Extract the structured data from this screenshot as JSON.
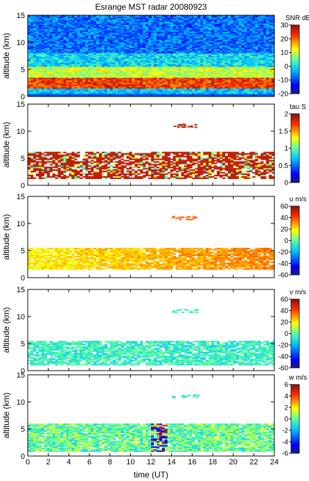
{
  "chart_data": {
    "type": "heatmap",
    "title": "Esrange MST radar 20080923",
    "xlabel": "time (UT)",
    "xlim": [
      0,
      24
    ],
    "xticks": [
      "0",
      "2",
      "4",
      "6",
      "8",
      "10",
      "12",
      "14",
      "16",
      "18",
      "20",
      "22",
      "24"
    ],
    "panels": [
      {
        "ylabel": "altitude (km)",
        "ylim": [
          0,
          15
        ],
        "yticks": [
          "0",
          "5",
          "10",
          "15"
        ],
        "colorbar": {
          "title": "SNR dB",
          "range": [
            -20,
            30
          ],
          "ticks": [
            "-20",
            "-10",
            "0",
            "10",
            "20",
            "30"
          ]
        },
        "kind": "snr",
        "bands": [
          {
            "alt_min": 0.5,
            "alt_max": 1.5,
            "level": 0.35
          },
          {
            "alt_min": 1.5,
            "alt_max": 3.5,
            "level": 0.85
          },
          {
            "alt_min": 3.5,
            "alt_max": 5.5,
            "level": 0.6
          },
          {
            "alt_min": 5.5,
            "alt_max": 8.0,
            "level": 0.38
          },
          {
            "alt_min": 8.0,
            "alt_max": 15.0,
            "level": 0.25
          }
        ]
      },
      {
        "ylabel": "altitude (km)",
        "ylim": [
          0,
          15
        ],
        "yticks": [
          "0",
          "5",
          "10",
          "15"
        ],
        "colorbar": {
          "title": "tau S",
          "range": [
            0,
            2
          ],
          "ticks": [
            "0",
            "0.5",
            "1",
            "1.5",
            "2"
          ]
        },
        "kind": "tau",
        "bands": [
          {
            "alt_min": 1.2,
            "alt_max": 6.2,
            "level": 0.92
          }
        ]
      },
      {
        "ylabel": "altitude (km)",
        "ylim": [
          0,
          15
        ],
        "yticks": [
          "0",
          "5",
          "10",
          "15"
        ],
        "colorbar": {
          "title": "u m/s",
          "range": [
            -60,
            60
          ],
          "ticks": [
            "-60",
            "-40",
            "-20",
            "0",
            "20",
            "40",
            "60"
          ]
        },
        "kind": "u",
        "bands": [
          {
            "alt_min": 1.5,
            "alt_max": 5.5,
            "level": 0.72
          }
        ]
      },
      {
        "ylabel": "altitude (km)",
        "ylim": [
          0,
          15
        ],
        "yticks": [
          "0",
          "5",
          "10",
          "15"
        ],
        "colorbar": {
          "title": "v m/s",
          "range": [
            -60,
            60
          ],
          "ticks": [
            "-60",
            "-40",
            "-20",
            "0",
            "20",
            "40",
            "60"
          ]
        },
        "kind": "v",
        "bands": [
          {
            "alt_min": 1.0,
            "alt_max": 5.5,
            "level": 0.45
          }
        ]
      },
      {
        "ylabel": "altitude (km)",
        "ylim": [
          0,
          15
        ],
        "yticks": [
          "0",
          "5",
          "10",
          "15"
        ],
        "colorbar": {
          "title": "w m/s",
          "range": [
            -6,
            6
          ],
          "ticks": [
            "-6",
            "-4",
            "-2",
            "0",
            "2",
            "4",
            "6"
          ]
        },
        "kind": "w",
        "bands": [
          {
            "alt_min": 0.8,
            "alt_max": 6.0,
            "level": 0.5
          }
        ]
      }
    ]
  }
}
